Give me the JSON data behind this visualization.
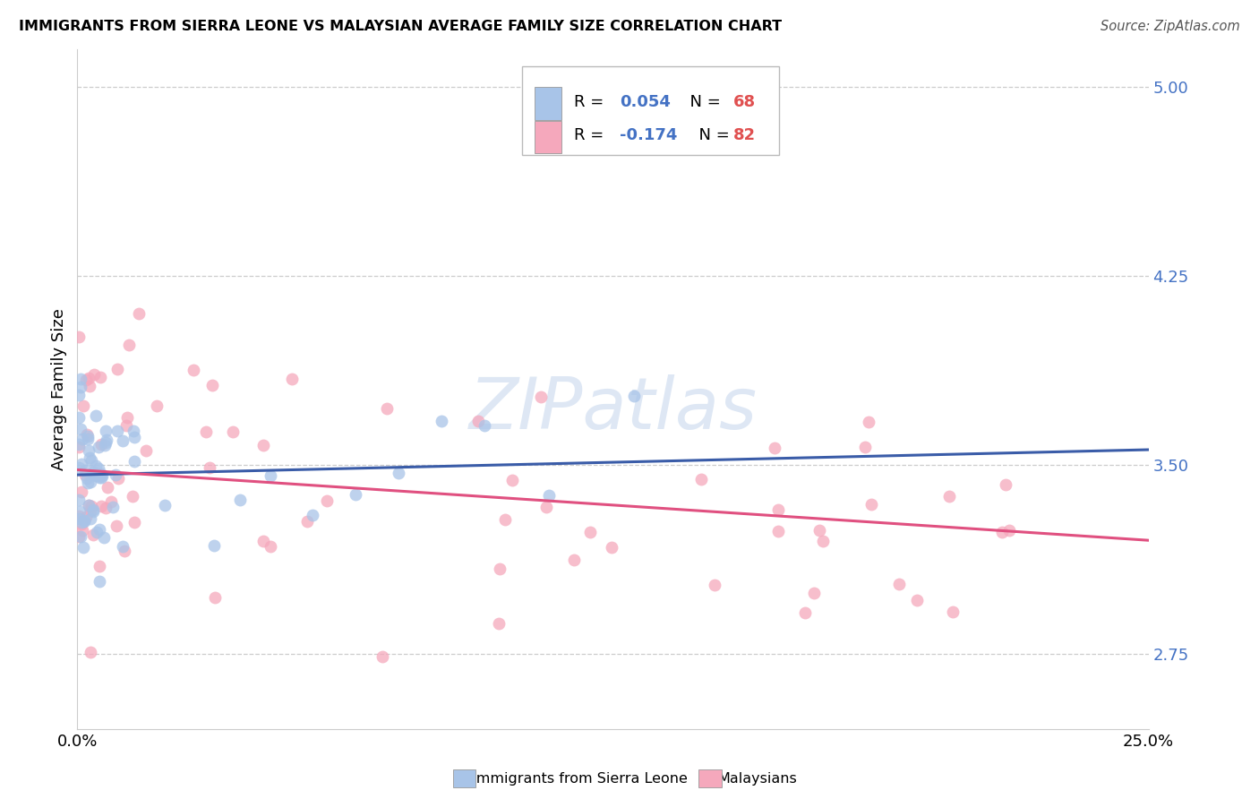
{
  "title": "IMMIGRANTS FROM SIERRA LEONE VS MALAYSIAN AVERAGE FAMILY SIZE CORRELATION CHART",
  "source": "Source: ZipAtlas.com",
  "ylabel": "Average Family Size",
  "xlim": [
    0.0,
    0.25
  ],
  "ylim": [
    2.45,
    5.15
  ],
  "yticks": [
    2.75,
    3.5,
    4.25,
    5.0
  ],
  "color_blue": "#a8c4e8",
  "color_pink": "#f5a8bc",
  "color_blue_line": "#3a5ca8",
  "color_pink_line": "#e05080",
  "color_grid": "#cccccc",
  "watermark": "ZIPatlas",
  "watermark_color": "#c8d8ee",
  "blue_R": "0.054",
  "blue_N": "68",
  "pink_R": "-0.174",
  "pink_N": "82",
  "r_color": "#4472c4",
  "n_color": "#e05050"
}
